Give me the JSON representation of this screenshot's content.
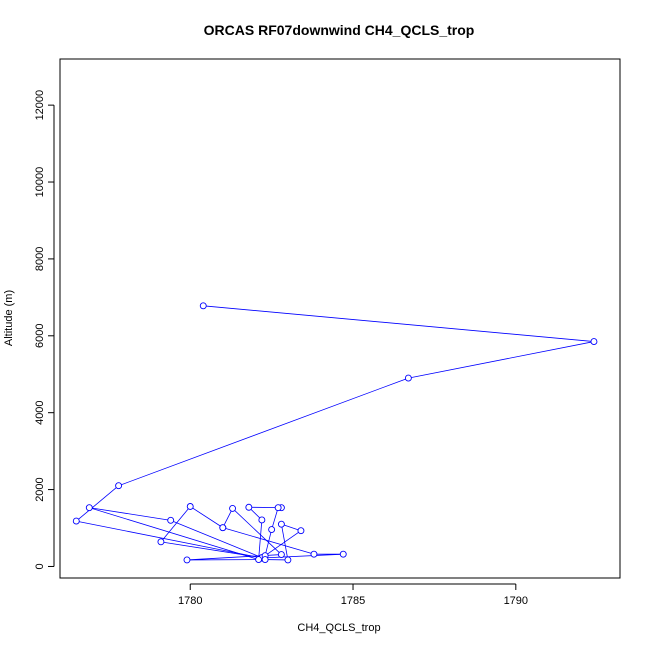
{
  "chart_data": {
    "type": "line",
    "title": "ORCAS RF07downwind CH4_QCLS_trop",
    "xlabel": "CH4_QCLS_trop",
    "ylabel": "Altitude (m)",
    "xlim": [
      1776.0,
      1793.2
    ],
    "ylim": [
      -300,
      13200
    ],
    "xticks": [
      1780,
      1785,
      1790
    ],
    "yticks": [
      0,
      2000,
      4000,
      6000,
      8000,
      10000,
      12000
    ],
    "series_color": "#0000ff",
    "series": [
      {
        "name": "CH4_QCLS_trop",
        "x": [
          1780.4,
          1792.4,
          1786.7,
          1777.8,
          1776.5,
          1782.2,
          1784.7,
          1783.8,
          1781.0,
          1780.0,
          1779.1,
          1782.2,
          1779.4,
          1776.9,
          1782.1,
          1782.2,
          1781.8,
          1782.8,
          1782.7,
          1782.5,
          1782.3,
          1783.4,
          1782.8,
          1783.0,
          1782.3,
          1779.9,
          1782.8,
          1781.3,
          1781.0
        ],
        "y": [
          6780,
          5850,
          4900,
          2100,
          1180,
          220,
          320,
          320,
          1010,
          1560,
          640,
          230,
          1200,
          1530,
          180,
          1210,
          1540,
          1530,
          1530,
          960,
          280,
          930,
          1100,
          170,
          180,
          170,
          310,
          1510,
          1010
        ]
      }
    ]
  }
}
